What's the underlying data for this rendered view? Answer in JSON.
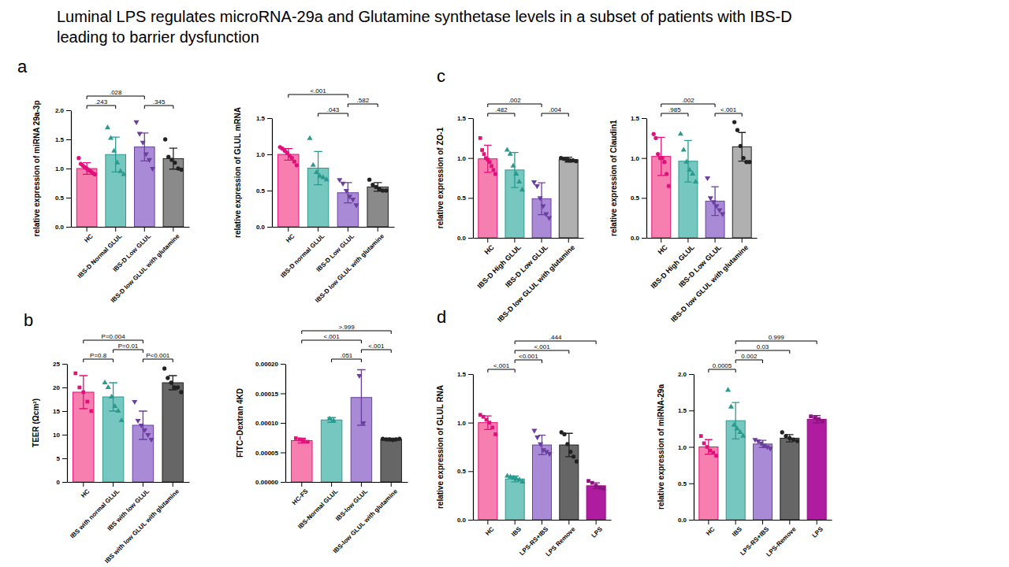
{
  "title": [
    "Luminal LPS regulates microRNA-29a and Glutamine synthetase levels in a subset of patients with IBS-D",
    "leading to barrier dysfunction"
  ],
  "panel_labels": [
    "a",
    "b",
    "c",
    "d"
  ],
  "chart_data": [
    {
      "type": "bar",
      "y_label": "relative expression of miRNA 29a-3p",
      "categories": [
        "HC",
        "IBS-D Normal GLUL",
        "IBS-D Low GLUL",
        "IBS-D low GLUL with glutamine"
      ],
      "values": [
        1.0,
        1.24,
        1.37,
        1.17
      ],
      "errors": [
        0.1,
        0.3,
        0.24,
        0.18
      ],
      "colors": [
        "#f77fb0",
        "#76c7c0",
        "#a98ad6",
        "#8a8a8a"
      ],
      "points": [
        {
          "color": "#e0117a",
          "marker": "circle",
          "values": [
            1.18,
            1.08,
            1.05,
            1.02,
            1.0,
            0.97,
            0.95,
            0.92,
            0.9
          ]
        },
        {
          "color": "#2a9a8e",
          "marker": "triangle",
          "values": [
            1.7,
            1.52,
            1.3,
            1.1,
            0.95,
            0.9
          ]
        },
        {
          "color": "#6b3fa0",
          "marker": "triangle-down",
          "values": [
            1.8,
            1.6,
            1.45,
            1.25,
            1.15,
            1.0
          ]
        },
        {
          "color": "#222222",
          "marker": "circle",
          "values": [
            1.5,
            1.2,
            1.15,
            1.1,
            1.0,
            0.98
          ]
        }
      ],
      "ylim": [
        0,
        2
      ],
      "yticks": [
        {
          "value": 0,
          "label": "0.0"
        },
        {
          "value": 0.5,
          "label": "0.5"
        },
        {
          "value": 1,
          "label": "1.0"
        },
        {
          "value": 1.5,
          "label": "1.5"
        },
        {
          "value": 2,
          "label": "2.0"
        }
      ],
      "annotations": [
        {
          "from": 0,
          "to": 1,
          "text": ".243"
        },
        {
          "from": 2,
          "to": 3,
          "text": ".345"
        },
        {
          "from": 0,
          "to": 2,
          "text": ".028"
        }
      ]
    },
    {
      "type": "bar",
      "y_label": "relative expression of GLUL mRNA",
      "categories": [
        "HC",
        "IBS-D normal GLUL",
        "IBS-D Low GLUL",
        "IBS-D low GLUL with glutamine"
      ],
      "values": [
        1.0,
        0.81,
        0.47,
        0.55
      ],
      "errors": [
        0.08,
        0.23,
        0.14,
        0.06
      ],
      "colors": [
        "#f77fb0",
        "#76c7c0",
        "#a98ad6",
        "#8a8a8a"
      ],
      "points": [
        {
          "color": "#e0117a",
          "marker": "circle",
          "values": [
            1.1,
            1.08,
            1.05,
            1.02,
            0.98,
            0.95,
            0.9,
            0.85
          ]
        },
        {
          "color": "#2a9a8e",
          "marker": "triangle",
          "values": [
            1.22,
            0.85,
            0.75,
            0.7,
            0.68,
            0.65
          ]
        },
        {
          "color": "#6b3fa0",
          "marker": "triangle-down",
          "values": [
            0.65,
            0.6,
            0.5,
            0.42,
            0.38,
            0.3
          ]
        },
        {
          "color": "#222222",
          "marker": "circle",
          "values": [
            0.65,
            0.58,
            0.55,
            0.52,
            0.5,
            0.5
          ]
        }
      ],
      "ylim": [
        0,
        1.5
      ],
      "yticks": [
        {
          "value": 0,
          "label": "0.0"
        },
        {
          "value": 0.5,
          "label": "0.5"
        },
        {
          "value": 1,
          "label": "1.0"
        },
        {
          "value": 1.5,
          "label": "1.5"
        }
      ],
      "annotations": [
        {
          "from": 1,
          "to": 2,
          "text": ".043"
        },
        {
          "from": 2,
          "to": 3,
          "text": ".582"
        },
        {
          "from": 0,
          "to": 2,
          "text": "<.001"
        }
      ]
    },
    {
      "type": "bar",
      "y_label": "TEER (Ωcm²)",
      "categories": [
        "HC",
        "IBS with normal GLUL",
        "IBS with low GLUL",
        "IBS with low GLUL with glutamine"
      ],
      "values": [
        19,
        18,
        12,
        21
      ],
      "errors": [
        3.5,
        3,
        3,
        1.5
      ],
      "colors": [
        "#f77fb0",
        "#76c7c0",
        "#a98ad6",
        "#666666"
      ],
      "points": [
        {
          "color": "#e0117a",
          "marker": "square",
          "values": [
            23,
            20,
            19,
            17,
            15
          ]
        },
        {
          "color": "#2a9a8e",
          "marker": "triangle",
          "values": [
            21,
            20,
            18,
            16,
            15,
            13
          ]
        },
        {
          "color": "#6b3fa0",
          "marker": "triangle-down",
          "values": [
            17,
            13,
            12,
            11,
            10,
            9
          ]
        },
        {
          "color": "#222222",
          "marker": "circle",
          "values": [
            24,
            22,
            21,
            20,
            20,
            19
          ]
        }
      ],
      "ylim": [
        0,
        25
      ],
      "yticks": [
        0,
        5,
        10,
        15,
        20,
        25
      ],
      "annotations": [
        {
          "from": 0,
          "to": 1,
          "text": "P=0.8"
        },
        {
          "from": 2,
          "to": 3,
          "text": "P<0.001"
        },
        {
          "from": 1,
          "to": 2,
          "text": "P=0.01"
        },
        {
          "from": 0,
          "to": 2,
          "text": "P=0.004"
        }
      ]
    },
    {
      "type": "bar",
      "y_label": "FITC−Dextran 4KD",
      "categories": [
        "HC-FS",
        "IBS-Normal GLUL",
        "IBS-low GLUL",
        "IBS-low GLUL with glutamine"
      ],
      "values": [
        7e-05,
        0.000105,
        0.000143,
        7.2e-05
      ],
      "errors": [
        4e-06,
        4e-06,
        4.7e-05,
        2e-06
      ],
      "colors": [
        "#f77fb0",
        "#76c7c0",
        "#a98ad6",
        "#666666"
      ],
      "points": [
        {
          "color": "#e0117a",
          "marker": "square",
          "values": [
            7.4e-05,
            7.2e-05,
            7e-05,
            6.8e-05
          ]
        },
        {
          "color": "#2a9a8e",
          "marker": "triangle",
          "values": [
            0.000107,
            0.000104
          ]
        },
        {
          "color": "#6b3fa0",
          "marker": "triangle-down",
          "values": [
            0.00018,
            0.0001
          ]
        },
        {
          "color": "#222222",
          "marker": "circle",
          "values": [
            7.3e-05,
            7.2e-05,
            7.2e-05,
            7.1e-05,
            7.2e-05,
            7.3e-05
          ]
        }
      ],
      "ylim": [
        0,
        0.0002
      ],
      "yticks": [
        {
          "value": 0,
          "label": "0.00000"
        },
        {
          "value": 5e-05,
          "label": "0.00005"
        },
        {
          "value": 0.0001,
          "label": "0.00010"
        },
        {
          "value": 0.00015,
          "label": "0.00015"
        },
        {
          "value": 0.0002,
          "label": "0.00020"
        }
      ],
      "annotations": [
        {
          "from": 1,
          "to": 2,
          "text": ".051"
        },
        {
          "from": 2,
          "to": 3,
          "text": "<.001"
        },
        {
          "from": 0,
          "to": 2,
          "text": "<.001"
        },
        {
          "from": 0,
          "to": 3,
          "text": ">.999"
        }
      ]
    },
    {
      "type": "bar",
      "y_label": "relative expression of ZO-1",
      "categories": [
        "HC",
        "IBS-D High GLUL",
        "IBS-D Low GLUL",
        "IBS-D low GLUL with glutamine"
      ],
      "values": [
        0.99,
        0.85,
        0.49,
        0.98
      ],
      "errors": [
        0.17,
        0.22,
        0.2,
        0.03
      ],
      "colors": [
        "#f77fb0",
        "#76c7c0",
        "#a98ad6",
        "#b0b0b0"
      ],
      "points": [
        {
          "color": "#e0117a",
          "marker": "square",
          "values": [
            1.25,
            1.1,
            1.05,
            1.0,
            0.98,
            0.95,
            0.9,
            0.85,
            0.8
          ]
        },
        {
          "color": "#2a9a8e",
          "marker": "triangle",
          "values": [
            1.1,
            1.05,
            0.9,
            0.8,
            0.7,
            0.6
          ]
        },
        {
          "color": "#6b3fa0",
          "marker": "triangle-down",
          "values": [
            0.7,
            0.65,
            0.5,
            0.4,
            0.3,
            0.25
          ]
        },
        {
          "color": "#222222",
          "marker": "circle",
          "values": [
            1.0,
            0.99,
            0.98,
            0.97,
            0.97,
            0.96
          ]
        }
      ],
      "ylim": [
        0,
        1.5
      ],
      "yticks": [
        {
          "value": 0,
          "label": "0.0"
        },
        {
          "value": 0.5,
          "label": "0.5"
        },
        {
          "value": 1,
          "label": "1.0"
        },
        {
          "value": 1.5,
          "label": "1.5"
        }
      ],
      "annotations": [
        {
          "from": 0,
          "to": 1,
          "text": ".482"
        },
        {
          "from": 2,
          "to": 3,
          "text": ".004"
        },
        {
          "from": 0,
          "to": 2,
          "text": ".002"
        }
      ]
    },
    {
      "type": "bar",
      "y_label": "relative expression of Claudin1",
      "categories": [
        "HC",
        "IBS-D High GLUL",
        "IBS-D Low GLUL",
        "IBS-D low GLUL with glutamine"
      ],
      "values": [
        1.02,
        0.96,
        0.46,
        1.14
      ],
      "errors": [
        0.24,
        0.26,
        0.18,
        0.18
      ],
      "colors": [
        "#f77fb0",
        "#76c7c0",
        "#a98ad6",
        "#b0b0b0"
      ],
      "points": [
        {
          "color": "#e0117a",
          "marker": "circle",
          "values": [
            1.3,
            1.25,
            1.05,
            1.0,
            1.0,
            0.95,
            0.8,
            0.65
          ]
        },
        {
          "color": "#2a9a8e",
          "marker": "triangle",
          "values": [
            1.3,
            1.1,
            0.95,
            0.85,
            0.8,
            0.7
          ]
        },
        {
          "color": "#6b3fa0",
          "marker": "triangle-down",
          "values": [
            0.75,
            0.5,
            0.45,
            0.4,
            0.35,
            0.3
          ]
        },
        {
          "color": "#222222",
          "marker": "circle",
          "values": [
            1.45,
            1.35,
            1.15,
            1.0,
            0.95,
            0.95
          ]
        }
      ],
      "ylim": [
        0,
        1.5
      ],
      "yticks": [
        {
          "value": 0,
          "label": "0.0"
        },
        {
          "value": 0.5,
          "label": "0.5"
        },
        {
          "value": 1,
          "label": "1.0"
        },
        {
          "value": 1.5,
          "label": "1.5"
        }
      ],
      "annotations": [
        {
          "from": 0,
          "to": 1,
          "text": ".985"
        },
        {
          "from": 2,
          "to": 3,
          "text": "<.001"
        },
        {
          "from": 0,
          "to": 2,
          "text": ".002"
        }
      ]
    },
    {
      "type": "bar",
      "y_label": "relative expression of GLUL RNA",
      "categories": [
        "HC",
        "IBS",
        "LPS-RS+IBS",
        "LPS Remove",
        "LPS"
      ],
      "values": [
        1.0,
        0.42,
        0.77,
        0.77,
        0.35
      ],
      "errors": [
        0.07,
        0.03,
        0.1,
        0.12,
        0.03
      ],
      "colors": [
        "#f77fb0",
        "#76c7c0",
        "#a98ad6",
        "#666666",
        "#b01ca0"
      ],
      "points": [
        {
          "color": "#e0117a",
          "marker": "square",
          "values": [
            1.08,
            1.06,
            1.03,
            1.0,
            0.95,
            0.88
          ]
        },
        {
          "color": "#2a9a8e",
          "marker": "triangle",
          "values": [
            0.45,
            0.44,
            0.43,
            0.42,
            0.41,
            0.39
          ]
        },
        {
          "color": "#6b3fa0",
          "marker": "triangle-down",
          "values": [
            0.92,
            0.85,
            0.78,
            0.72,
            0.7,
            0.68
          ]
        },
        {
          "color": "#222222",
          "marker": "circle",
          "values": [
            0.9,
            0.88,
            0.78,
            0.7,
            0.65,
            0.6
          ]
        },
        {
          "color": "#8e1180",
          "marker": "square",
          "values": [
            0.4,
            0.38,
            0.35,
            0.33,
            0.32
          ]
        }
      ],
      "ylim": [
        0,
        1.5
      ],
      "yticks": [
        {
          "value": 0,
          "label": "0.0"
        },
        {
          "value": 0.5,
          "label": "0.5"
        },
        {
          "value": 1,
          "label": "1.0"
        },
        {
          "value": 1.5,
          "label": "1.5"
        }
      ],
      "annotations": [
        {
          "from": 0,
          "to": 1,
          "text": "<.001"
        },
        {
          "from": 1,
          "to": 2,
          "text": "<0.001"
        },
        {
          "from": 1,
          "to": 3,
          "text": "<.001"
        },
        {
          "from": 1,
          "to": 4,
          "text": ".444"
        }
      ]
    },
    {
      "type": "bar",
      "y_label": "relative expression of miRNA-29a",
      "categories": [
        "HC",
        "IBS",
        "LPS-RS+IBS",
        "LPS-Remove",
        "LPS"
      ],
      "values": [
        1.0,
        1.36,
        1.04,
        1.12,
        1.38
      ],
      "errors": [
        0.1,
        0.25,
        0.05,
        0.05,
        0.05
      ],
      "colors": [
        "#f77fb0",
        "#76c7c0",
        "#a98ad6",
        "#666666",
        "#b01ca0"
      ],
      "points": [
        {
          "color": "#e0117a",
          "marker": "square",
          "values": [
            1.15,
            1.05,
            1.0,
            0.95,
            0.92,
            0.88
          ]
        },
        {
          "color": "#2a9a8e",
          "marker": "triangle",
          "values": [
            1.78,
            1.55,
            1.3,
            1.25,
            1.2,
            1.15
          ]
        },
        {
          "color": "#6b3fa0",
          "marker": "triangle-down",
          "values": [
            1.1,
            1.08,
            1.05,
            1.02,
            1.0,
            0.98
          ]
        },
        {
          "color": "#222222",
          "marker": "circle",
          "values": [
            1.2,
            1.15,
            1.12,
            1.1,
            1.08
          ]
        },
        {
          "color": "#8e1180",
          "marker": "square",
          "values": [
            1.42,
            1.4,
            1.38,
            1.35
          ]
        }
      ],
      "ylim": [
        0,
        2
      ],
      "yticks": [
        {
          "value": 0,
          "label": "0.0"
        },
        {
          "value": 0.5,
          "label": "0.5"
        },
        {
          "value": 1,
          "label": "1.0"
        },
        {
          "value": 1.5,
          "label": "1.5"
        },
        {
          "value": 2,
          "label": "2.0"
        }
      ],
      "annotations": [
        {
          "from": 0,
          "to": 1,
          "text": "0.0005"
        },
        {
          "from": 1,
          "to": 2,
          "text": "0.002"
        },
        {
          "from": 1,
          "to": 3,
          "text": "0.03"
        },
        {
          "from": 1,
          "to": 4,
          "text": "0.999"
        }
      ]
    }
  ]
}
